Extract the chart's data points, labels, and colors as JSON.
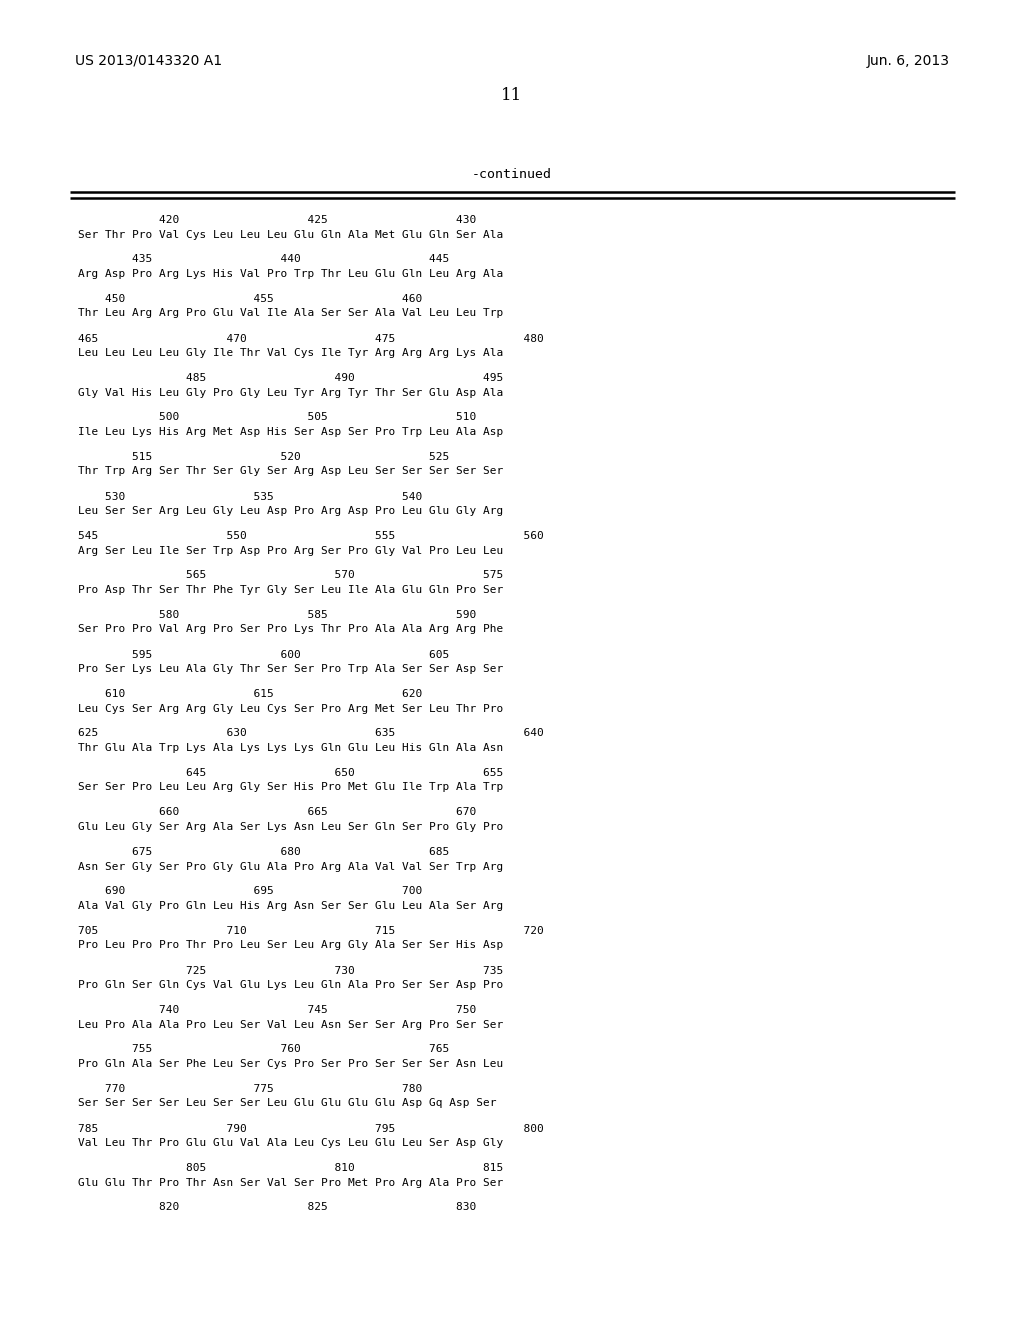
{
  "patent_number": "US 2013/0143320 A1",
  "date": "Jun. 6, 2013",
  "page_number": "11",
  "continued_label": "-continued",
  "background_color": "#ffffff",
  "text_color": "#000000",
  "sequence_lines": [
    {
      "type": "numbers",
      "text": "            420                   425                   430"
    },
    {
      "type": "seq",
      "text": "Ser Thr Pro Val Cys Leu Leu Leu Glu Gln Ala Met Glu Gln Ser Ala"
    },
    {
      "type": "numbers",
      "text": "        435                   440                   445"
    },
    {
      "type": "seq",
      "text": "Arg Asp Pro Arg Lys His Val Pro Trp Thr Leu Glu Gln Leu Arg Ala"
    },
    {
      "type": "numbers",
      "text": "    450                   455                   460"
    },
    {
      "type": "seq",
      "text": "Thr Leu Arg Arg Pro Glu Val Ile Ala Ser Ser Ala Val Leu Leu Trp"
    },
    {
      "type": "numbers",
      "text": "465                   470                   475                   480"
    },
    {
      "type": "seq",
      "text": "Leu Leu Leu Leu Gly Ile Thr Val Cys Ile Tyr Arg Arg Arg Lys Ala"
    },
    {
      "type": "numbers",
      "text": "                485                   490                   495"
    },
    {
      "type": "seq",
      "text": "Gly Val His Leu Gly Pro Gly Leu Tyr Arg Tyr Thr Ser Glu Asp Ala"
    },
    {
      "type": "numbers",
      "text": "            500                   505                   510"
    },
    {
      "type": "seq",
      "text": "Ile Leu Lys His Arg Met Asp His Ser Asp Ser Pro Trp Leu Ala Asp"
    },
    {
      "type": "numbers",
      "text": "        515                   520                   525"
    },
    {
      "type": "seq",
      "text": "Thr Trp Arg Ser Thr Ser Gly Ser Arg Asp Leu Ser Ser Ser Ser Ser"
    },
    {
      "type": "numbers",
      "text": "    530                   535                   540"
    },
    {
      "type": "seq",
      "text": "Leu Ser Ser Arg Leu Gly Leu Asp Pro Arg Asp Pro Leu Glu Gly Arg"
    },
    {
      "type": "numbers",
      "text": "545                   550                   555                   560"
    },
    {
      "type": "seq",
      "text": "Arg Ser Leu Ile Ser Trp Asp Pro Arg Ser Pro Gly Val Pro Leu Leu"
    },
    {
      "type": "numbers",
      "text": "                565                   570                   575"
    },
    {
      "type": "seq",
      "text": "Pro Asp Thr Ser Thr Phe Tyr Gly Ser Leu Ile Ala Glu Gln Pro Ser"
    },
    {
      "type": "numbers",
      "text": "            580                   585                   590"
    },
    {
      "type": "seq",
      "text": "Ser Pro Pro Val Arg Pro Ser Pro Lys Thr Pro Ala Ala Arg Arg Phe"
    },
    {
      "type": "numbers",
      "text": "        595                   600                   605"
    },
    {
      "type": "seq",
      "text": "Pro Ser Lys Leu Ala Gly Thr Ser Ser Pro Trp Ala Ser Ser Asp Ser"
    },
    {
      "type": "numbers",
      "text": "    610                   615                   620"
    },
    {
      "type": "seq",
      "text": "Leu Cys Ser Arg Arg Gly Leu Cys Ser Pro Arg Met Ser Leu Thr Pro"
    },
    {
      "type": "numbers",
      "text": "625                   630                   635                   640"
    },
    {
      "type": "seq",
      "text": "Thr Glu Ala Trp Lys Ala Lys Lys Lys Gln Glu Leu His Gln Ala Asn"
    },
    {
      "type": "numbers",
      "text": "                645                   650                   655"
    },
    {
      "type": "seq",
      "text": "Ser Ser Pro Leu Leu Arg Gly Ser His Pro Met Glu Ile Trp Ala Trp"
    },
    {
      "type": "numbers",
      "text": "            660                   665                   670"
    },
    {
      "type": "seq",
      "text": "Glu Leu Gly Ser Arg Ala Ser Lys Asn Leu Ser Gln Ser Pro Gly Pro"
    },
    {
      "type": "numbers",
      "text": "        675                   680                   685"
    },
    {
      "type": "seq",
      "text": "Asn Ser Gly Ser Pro Gly Glu Ala Pro Arg Ala Val Val Ser Trp Arg"
    },
    {
      "type": "numbers",
      "text": "    690                   695                   700"
    },
    {
      "type": "seq",
      "text": "Ala Val Gly Pro Gln Leu His Arg Asn Ser Ser Glu Leu Ala Ser Arg"
    },
    {
      "type": "numbers",
      "text": "705                   710                   715                   720"
    },
    {
      "type": "seq",
      "text": "Pro Leu Pro Pro Thr Pro Leu Ser Leu Arg Gly Ala Ser Ser His Asp"
    },
    {
      "type": "numbers",
      "text": "                725                   730                   735"
    },
    {
      "type": "seq",
      "text": "Pro Gln Ser Gln Cys Val Glu Lys Leu Gln Ala Pro Ser Ser Asp Pro"
    },
    {
      "type": "numbers",
      "text": "            740                   745                   750"
    },
    {
      "type": "seq",
      "text": "Leu Pro Ala Ala Pro Leu Ser Val Leu Asn Ser Ser Arg Pro Ser Ser"
    },
    {
      "type": "numbers",
      "text": "        755                   760                   765"
    },
    {
      "type": "seq",
      "text": "Pro Gln Ala Ser Phe Leu Ser Cys Pro Ser Pro Ser Ser Ser Asn Leu"
    },
    {
      "type": "numbers",
      "text": "    770                   775                   780"
    },
    {
      "type": "seq",
      "text": "Ser Ser Ser Ser Leu Ser Ser Leu Glu Glu Glu Glu Asp Gq Asp Ser"
    },
    {
      "type": "numbers",
      "text": "785                   790                   795                   800"
    },
    {
      "type": "seq",
      "text": "Val Leu Thr Pro Glu Glu Val Ala Leu Cys Leu Glu Leu Ser Asp Gly"
    },
    {
      "type": "numbers",
      "text": "                805                   810                   815"
    },
    {
      "type": "seq",
      "text": "Glu Glu Thr Pro Thr Asn Ser Val Ser Pro Met Pro Arg Ala Pro Ser"
    },
    {
      "type": "numbers",
      "text": "            820                   825                   830"
    }
  ]
}
